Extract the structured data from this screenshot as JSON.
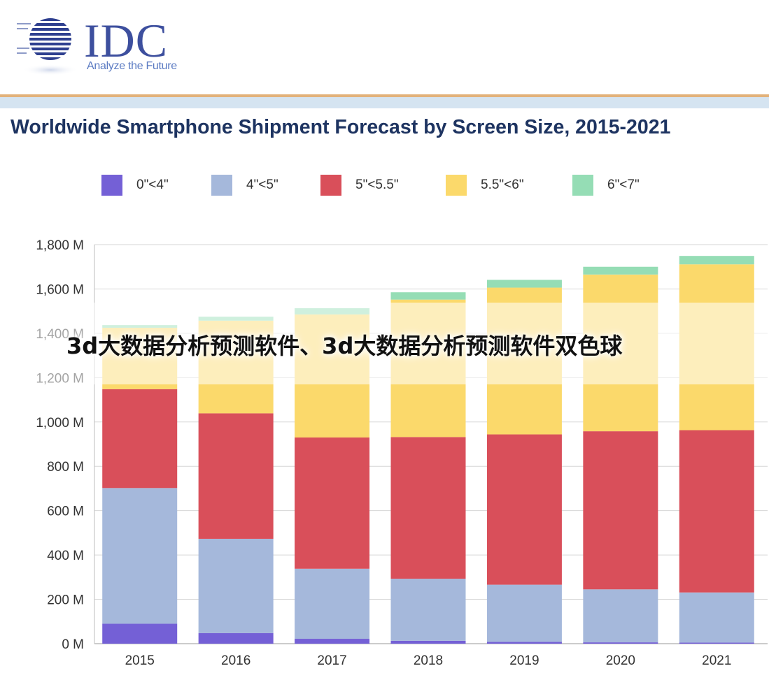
{
  "brand": {
    "name": "IDC",
    "tagline": "Analyze the Future",
    "colors": {
      "navy": "#3d4f9e",
      "gold_rule": "#e2b27a",
      "blue_rule": "#d5e4f1"
    }
  },
  "overlay_caption": "3d大数据分析预测软件、3d大数据分析预测软件双色球",
  "chart_data": {
    "type": "bar",
    "stacked": true,
    "title": "Worldwide Smartphone Shipment Forecast by Screen Size, 2015-2021",
    "xlabel": "",
    "ylabel": "",
    "categories": [
      "2015",
      "2016",
      "2017",
      "2018",
      "2019",
      "2020",
      "2021"
    ],
    "ylim": [
      0,
      1800
    ],
    "y_ticks": [
      0,
      200,
      400,
      600,
      800,
      1000,
      1200,
      1400,
      1600,
      1800
    ],
    "y_tick_labels": [
      "0 M",
      "200 M",
      "400 M",
      "600 M",
      "800 M",
      "1,000 M",
      "1,200 M",
      "1,400 M",
      "1,600 M",
      "1,800 M"
    ],
    "grid": true,
    "legend_position": "top",
    "series": [
      {
        "name": "0\"<4\"",
        "color": "#7460d6",
        "values": [
          90,
          48,
          22,
          13,
          8,
          6,
          5
        ]
      },
      {
        "name": "4\"<5\"",
        "color": "#a5b8db",
        "values": [
          612,
          425,
          316,
          280,
          258,
          239,
          226
        ]
      },
      {
        "name": "5\"<5.5\"",
        "color": "#d94f5a",
        "values": [
          446,
          566,
          592,
          639,
          678,
          713,
          732
        ]
      },
      {
        "name": "5.5\"<6\"",
        "color": "#fbd96b",
        "values": [
          277,
          418,
          555,
          620,
          662,
          707,
          748
        ]
      },
      {
        "name": "6\"<7\"",
        "color": "#95ddb5",
        "values": [
          12,
          18,
          28,
          33,
          35,
          35,
          38
        ]
      }
    ]
  }
}
